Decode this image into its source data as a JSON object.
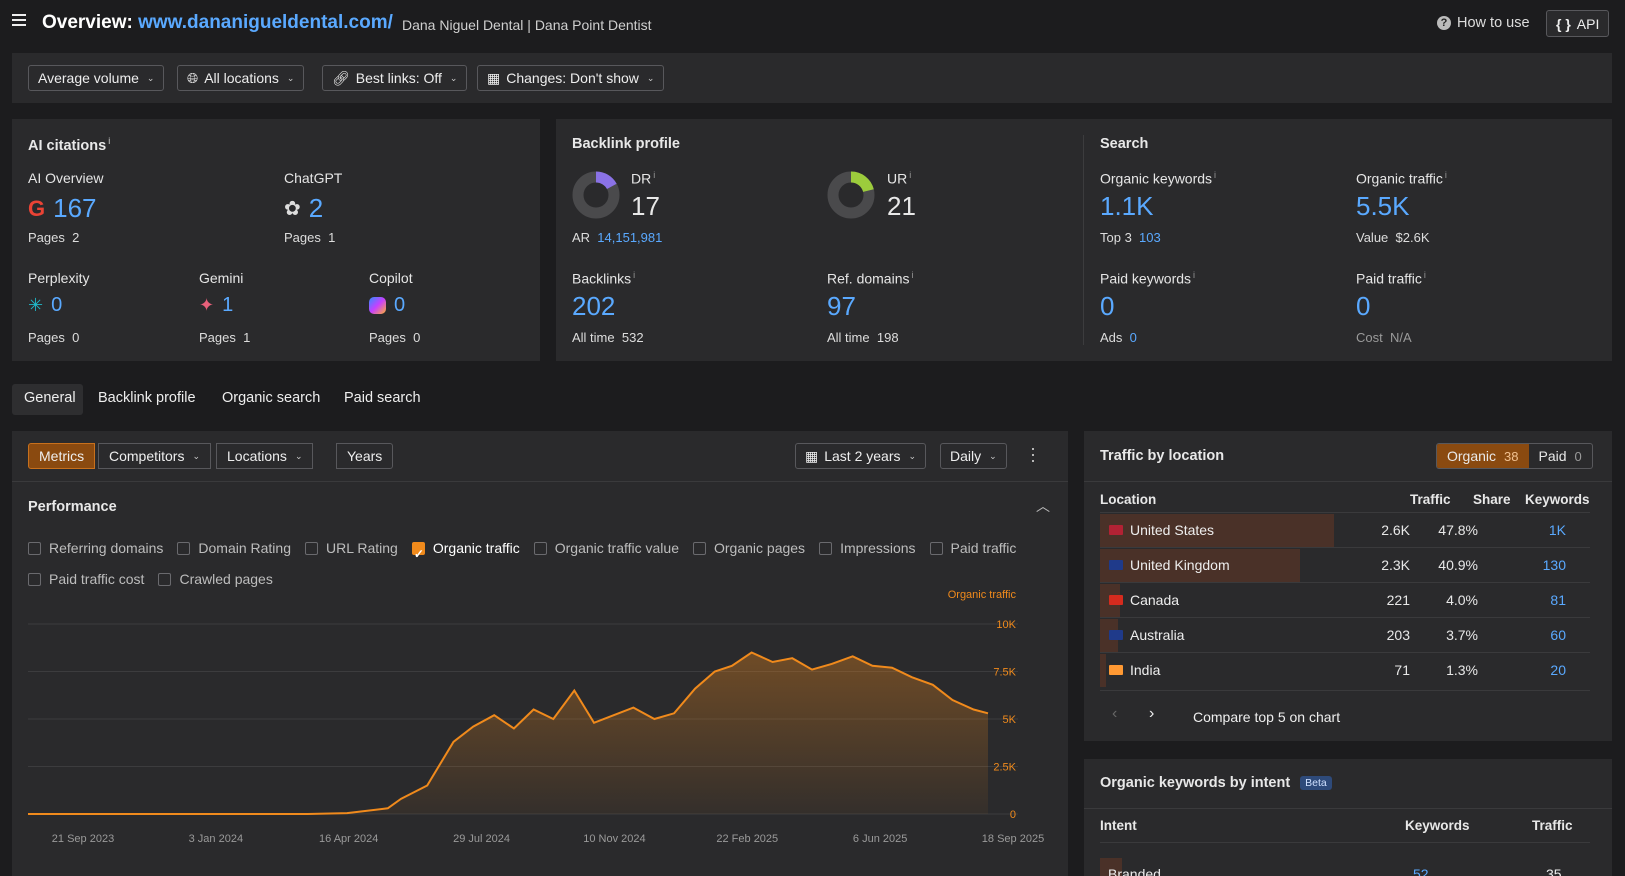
{
  "header": {
    "title_prefix": "Overview:",
    "domain": "www.dananigueldental.com/",
    "site_name": "Dana Niguel Dental | Dana Point Dentist",
    "how_to_use": "How to use",
    "api": "API"
  },
  "filters": {
    "volume": "Average volume",
    "locations": "All locations",
    "best_links": "Best links: Off",
    "changes": "Changes: Don't show"
  },
  "ai_citations": {
    "title": "AI citations",
    "ai_overview": {
      "label": "AI Overview",
      "value": "167",
      "pages_label": "Pages",
      "pages": "2"
    },
    "chatgpt": {
      "label": "ChatGPT",
      "value": "2",
      "pages_label": "Pages",
      "pages": "1"
    },
    "perplexity": {
      "label": "Perplexity",
      "value": "0",
      "pages_label": "Pages",
      "pages": "0"
    },
    "gemini": {
      "label": "Gemini",
      "value": "1",
      "pages_label": "Pages",
      "pages": "1"
    },
    "copilot": {
      "label": "Copilot",
      "value": "0",
      "pages_label": "Pages",
      "pages": "0"
    }
  },
  "backlink_profile": {
    "title": "Backlink profile",
    "dr": {
      "label": "DR",
      "value": "17",
      "gauge_fraction": 0.17
    },
    "ar": {
      "label": "AR",
      "value": "14,151,981"
    },
    "ur": {
      "label": "UR",
      "value": "21",
      "gauge_fraction": 0.21
    },
    "backlinks": {
      "label": "Backlinks",
      "value": "202",
      "sub_label": "All time",
      "sub_value": "532"
    },
    "ref_domains": {
      "label": "Ref. domains",
      "value": "97",
      "sub_label": "All time",
      "sub_value": "198"
    }
  },
  "search": {
    "title": "Search",
    "organic_keywords": {
      "label": "Organic keywords",
      "value": "1.1K",
      "sub_label": "Top 3",
      "sub_value": "103"
    },
    "organic_traffic": {
      "label": "Organic traffic",
      "value": "5.5K",
      "sub_label": "Value",
      "sub_value": "$2.6K"
    },
    "paid_keywords": {
      "label": "Paid keywords",
      "value": "0",
      "sub_label": "Ads",
      "sub_value": "0"
    },
    "paid_traffic": {
      "label": "Paid traffic",
      "value": "0",
      "sub_label": "Cost",
      "sub_value": "N/A"
    }
  },
  "tabs": [
    "General",
    "Backlink profile",
    "Organic search",
    "Paid search"
  ],
  "chart_toolbar": {
    "metrics": "Metrics",
    "competitors": "Competitors",
    "locations": "Locations",
    "years": "Years",
    "range": "Last 2 years",
    "interval": "Daily"
  },
  "performance": {
    "title": "Performance",
    "checkboxes": [
      {
        "label": "Referring domains",
        "checked": false
      },
      {
        "label": "Domain Rating",
        "checked": false
      },
      {
        "label": "URL Rating",
        "checked": false
      },
      {
        "label": "Organic traffic",
        "checked": true
      },
      {
        "label": "Organic traffic value",
        "checked": false
      },
      {
        "label": "Organic pages",
        "checked": false
      },
      {
        "label": "Impressions",
        "checked": false
      },
      {
        "label": "Paid traffic",
        "checked": false
      },
      {
        "label": "Paid traffic cost",
        "checked": false
      },
      {
        "label": "Crawled pages",
        "checked": false
      }
    ]
  },
  "chart_data": {
    "type": "area",
    "series": [
      {
        "name": "Organic traffic",
        "color": "#f08a1c"
      }
    ],
    "x": [
      "2023-09-21",
      "2023-10-21",
      "2023-11-21",
      "2023-12-21",
      "2024-01-21",
      "2024-02-21",
      "2024-03-21",
      "2024-04-21",
      "2024-05-21",
      "2024-06-21",
      "2024-07-01",
      "2024-07-21",
      "2024-08-10",
      "2024-08-25",
      "2024-09-10",
      "2024-09-25",
      "2024-10-10",
      "2024-10-25",
      "2024-11-10",
      "2024-11-25",
      "2024-12-10",
      "2024-12-25",
      "2025-01-10",
      "2025-01-25",
      "2025-02-10",
      "2025-02-25",
      "2025-03-10",
      "2025-03-25",
      "2025-04-10",
      "2025-04-25",
      "2025-05-10",
      "2025-05-25",
      "2025-06-10",
      "2025-06-25",
      "2025-07-10",
      "2025-07-25",
      "2025-08-10",
      "2025-08-25",
      "2025-09-10",
      "2025-09-21"
    ],
    "values": [
      0,
      0,
      0,
      0,
      0,
      0,
      0,
      0,
      50,
      300,
      800,
      1500,
      3800,
      4600,
      5200,
      4500,
      5500,
      5000,
      6500,
      4800,
      5200,
      5600,
      5000,
      5300,
      6600,
      7500,
      7800,
      8500,
      8000,
      8200,
      7600,
      7900,
      8300,
      7800,
      7700,
      7200,
      6800,
      6000,
      5500,
      5300
    ],
    "y_ticks": [
      "0",
      "2.5K",
      "5K",
      "7.5K",
      "10K"
    ],
    "ylim": [
      0,
      10000
    ],
    "x_tick_labels": [
      "21 Sep 2023",
      "3 Jan 2024",
      "16 Apr 2024",
      "29 Jul 2024",
      "10 Nov 2024",
      "22 Feb 2025",
      "6 Jun 2025",
      "18 Sep 2025"
    ],
    "legend_label": "Organic traffic",
    "grid": true
  },
  "traffic_by_location": {
    "title": "Traffic by location",
    "organic_label": "Organic",
    "organic_count": "38",
    "paid_label": "Paid",
    "paid_count": "0",
    "columns": [
      "Location",
      "Traffic",
      "Share",
      "Keywords"
    ],
    "rows": [
      {
        "name": "United States",
        "traffic": "2.6K",
        "share": "47.8%",
        "share_num": 47.8,
        "keywords": "1K",
        "flag": "us"
      },
      {
        "name": "United Kingdom",
        "traffic": "2.3K",
        "share": "40.9%",
        "share_num": 40.9,
        "keywords": "130",
        "flag": "uk"
      },
      {
        "name": "Canada",
        "traffic": "221",
        "share": "4.0%",
        "share_num": 4.0,
        "keywords": "81",
        "flag": "ca"
      },
      {
        "name": "Australia",
        "traffic": "203",
        "share": "3.7%",
        "share_num": 3.7,
        "keywords": "60",
        "flag": "au"
      },
      {
        "name": "India",
        "traffic": "71",
        "share": "1.3%",
        "share_num": 1.3,
        "keywords": "20",
        "flag": "in"
      }
    ],
    "compare": "Compare top 5 on chart"
  },
  "keywords_by_intent": {
    "title": "Organic keywords by intent",
    "beta": "Beta",
    "columns": [
      "Intent",
      "Keywords",
      "Traffic"
    ],
    "first_row": {
      "name": "Branded",
      "keywords": "52",
      "traffic": "35"
    }
  }
}
